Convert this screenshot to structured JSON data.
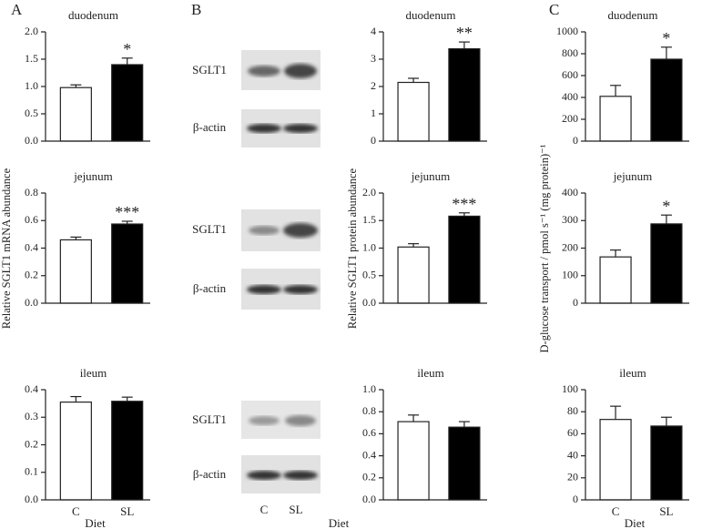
{
  "chart_data": [
    {
      "type": "bar",
      "panel": "A",
      "title": "duodenum",
      "values": [
        0.98,
        1.4
      ],
      "errors": [
        0.05,
        0.12
      ],
      "colors": [
        "#ffffff",
        "#000000"
      ],
      "annotation": "*",
      "ylim": [
        0,
        2
      ],
      "yticks": [
        {
          "value": 0,
          "label": "0.0"
        },
        0.5,
        {
          "value": 1,
          "label": "1.0"
        },
        1.5,
        {
          "value": 2,
          "label": "2.0"
        }
      ]
    },
    {
      "type": "bar",
      "title": "jejunum",
      "ylabel": "Relative SGLT1 mRNA abundance",
      "values": [
        0.46,
        0.575
      ],
      "errors": [
        0.02,
        0.02
      ],
      "colors": [
        "#ffffff",
        "#000000"
      ],
      "annotation": "***",
      "ylim": [
        0,
        0.8
      ],
      "yticks": [
        {
          "value": 0,
          "label": "0.0"
        },
        0.2,
        0.4,
        0.6,
        0.8
      ]
    },
    {
      "type": "bar",
      "title": "ileum",
      "categories": [
        "C",
        "SL"
      ],
      "xlabel": "Diet",
      "values": [
        0.355,
        0.358
      ],
      "errors": [
        0.02,
        0.015
      ],
      "colors": [
        "#ffffff",
        "#000000"
      ],
      "ylim": [
        0,
        0.4
      ],
      "yticks": [
        {
          "value": 0,
          "label": "0.0"
        },
        0.1,
        0.2,
        0.3,
        0.4
      ]
    },
    {
      "type": "bar",
      "panel": "B",
      "title": "duodenum",
      "values": [
        2.15,
        3.38
      ],
      "errors": [
        0.15,
        0.25
      ],
      "colors": [
        "#ffffff",
        "#000000"
      ],
      "annotation": "**",
      "ylim": [
        0,
        4
      ],
      "yticks": [
        0,
        1,
        2,
        3,
        4
      ]
    },
    {
      "type": "bar",
      "title": "jejunum",
      "ylabel": "Relative SGLT1 protein abundance",
      "values": [
        1.02,
        1.58
      ],
      "errors": [
        0.06,
        0.06
      ],
      "colors": [
        "#ffffff",
        "#000000"
      ],
      "annotation": "***",
      "ylim": [
        0,
        2
      ],
      "yticks": [
        {
          "value": 0,
          "label": "0.0"
        },
        0.5,
        {
          "value": 1,
          "label": "1.0"
        },
        1.5,
        {
          "value": 2,
          "label": "2.0"
        }
      ]
    },
    {
      "type": "bar",
      "title": "ileum",
      "values": [
        0.71,
        0.66
      ],
      "errors": [
        0.06,
        0.05
      ],
      "colors": [
        "#ffffff",
        "#000000"
      ],
      "ylim": [
        0,
        1
      ],
      "yticks": [
        {
          "value": 0,
          "label": "0.0"
        },
        0.2,
        0.4,
        0.6,
        0.8,
        {
          "value": 1,
          "label": "1.0"
        }
      ]
    },
    {
      "type": "bar",
      "panel": "C",
      "title": "duodenum",
      "values": [
        410,
        750
      ],
      "errors": [
        100,
        110
      ],
      "colors": [
        "#ffffff",
        "#000000"
      ],
      "annotation": "*",
      "ylim": [
        0,
        1000
      ],
      "yticks": [
        0,
        200,
        400,
        600,
        800,
        1000
      ]
    },
    {
      "type": "bar",
      "title": "jejunum",
      "ylabel": "D-glucose transport / pmol s⁻¹ (mg protein)⁻¹",
      "values": [
        168,
        288
      ],
      "errors": [
        25,
        32
      ],
      "colors": [
        "#ffffff",
        "#000000"
      ],
      "annotation": "*",
      "ylim": [
        0,
        400
      ],
      "yticks": [
        0,
        100,
        200,
        300,
        400
      ]
    },
    {
      "type": "bar",
      "title": "ileum",
      "categories": [
        "C",
        "SL"
      ],
      "xlabel": "Diet",
      "values": [
        73,
        67
      ],
      "errors": [
        12,
        8
      ],
      "colors": [
        "#ffffff",
        "#000000"
      ],
      "ylim": [
        0,
        100
      ],
      "yticks": [
        0,
        20,
        40,
        60,
        80,
        100
      ]
    }
  ],
  "blots": {
    "rows": [
      [
        "SGLT1",
        "β-actin"
      ],
      [
        "SGLT1",
        "β-actin"
      ],
      [
        "SGLT1",
        "β-actin"
      ]
    ],
    "lanes": [
      "C",
      "SL"
    ],
    "xlabel": "Diet"
  }
}
